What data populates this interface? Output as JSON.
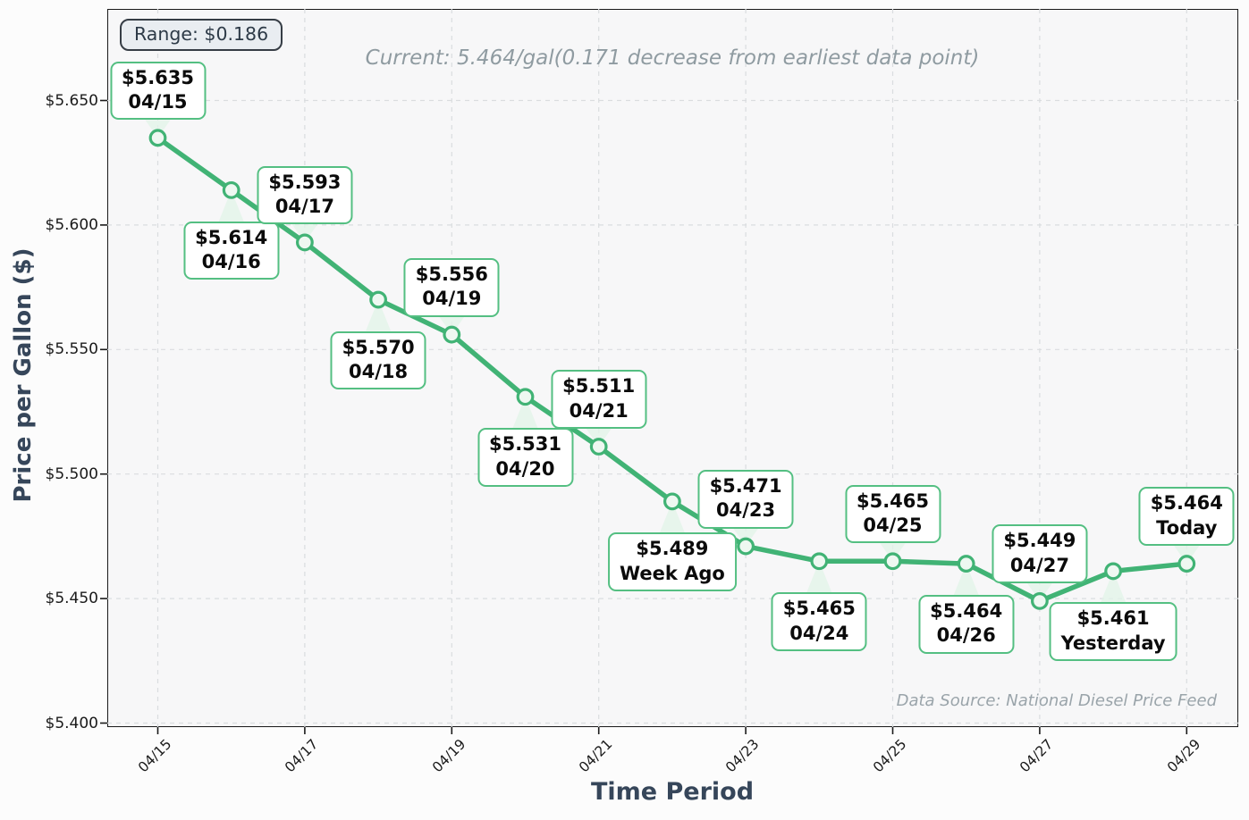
{
  "header": {
    "range_badge": "Range: $0.186",
    "title": "Current: 5.464/gal(0.171 decrease from earliest data point)"
  },
  "axes": {
    "xlabel": "Time Period",
    "ylabel": "Price per Gallon ($)"
  },
  "footnote": "Data Source: National Diesel Price Feed",
  "colors": {
    "line": "#41b375",
    "marker_fill": "#eef8f1",
    "label_border": "#54bf82",
    "wedge_fill": "rgba(226,244,233,0.8)",
    "grid": "#dadddf",
    "spine": "#1a1a1a",
    "badge_bg": "#e9edf1",
    "badge_border": "#363d45",
    "title_text": "#8f9ba1",
    "axis_label_text": "#36465a",
    "plot_bg": "#f7f7f8",
    "footnote_text": "#9aa4aa"
  },
  "chart_data": {
    "type": "line",
    "title": "Current: 5.464/gal(0.171 decrease from earliest data point)",
    "xlabel": "Time Period",
    "ylabel": "Price per Gallon ($)",
    "x": [
      "04/15",
      "04/16",
      "04/17",
      "04/18",
      "04/19",
      "04/20",
      "04/21",
      "04/22",
      "04/23",
      "04/24",
      "04/25",
      "04/26",
      "04/27",
      "04/28",
      "04/29"
    ],
    "values": [
      5.635,
      5.614,
      5.593,
      5.57,
      5.556,
      5.531,
      5.511,
      5.489,
      5.471,
      5.465,
      5.465,
      5.464,
      5.449,
      5.461,
      5.464
    ],
    "point_labels": [
      {
        "price": "$5.635",
        "date": "04/15",
        "placement": "above"
      },
      {
        "price": "$5.614",
        "date": "04/16",
        "placement": "below"
      },
      {
        "price": "$5.593",
        "date": "04/17",
        "placement": "above"
      },
      {
        "price": "$5.570",
        "date": "04/18",
        "placement": "below"
      },
      {
        "price": "$5.556",
        "date": "04/19",
        "placement": "above"
      },
      {
        "price": "$5.531",
        "date": "04/20",
        "placement": "below"
      },
      {
        "price": "$5.511",
        "date": "04/21",
        "placement": "above"
      },
      {
        "price": "$5.489",
        "date": "Week Ago",
        "placement": "below"
      },
      {
        "price": "$5.471",
        "date": "04/23",
        "placement": "above"
      },
      {
        "price": "$5.465",
        "date": "04/24",
        "placement": "below"
      },
      {
        "price": "$5.465",
        "date": "04/25",
        "placement": "above"
      },
      {
        "price": "$5.464",
        "date": "04/26",
        "placement": "below"
      },
      {
        "price": "$5.449",
        "date": "04/27",
        "placement": "above"
      },
      {
        "price": "$5.461",
        "date": "Yesterday",
        "placement": "below"
      },
      {
        "price": "$5.464",
        "date": "Today",
        "placement": "above"
      }
    ],
    "x_ticks": {
      "labels": [
        "04/15",
        "04/17",
        "04/19",
        "04/21",
        "04/23",
        "04/25",
        "04/27",
        "04/29"
      ],
      "indices": [
        0,
        2,
        4,
        6,
        8,
        10,
        12,
        14
      ]
    },
    "y_ticks": {
      "labels": [
        "$5.650",
        "$5.600",
        "$5.550",
        "$5.500",
        "$5.450",
        "$5.400"
      ],
      "values": [
        5.65,
        5.6,
        5.55,
        5.5,
        5.45,
        5.4
      ]
    },
    "ylim": [
      5.399,
      5.687
    ],
    "grid": true,
    "legend": false,
    "annotations": {
      "range_badge": "Range: $0.186",
      "data_source": "Data Source: National Diesel Price Feed"
    }
  }
}
